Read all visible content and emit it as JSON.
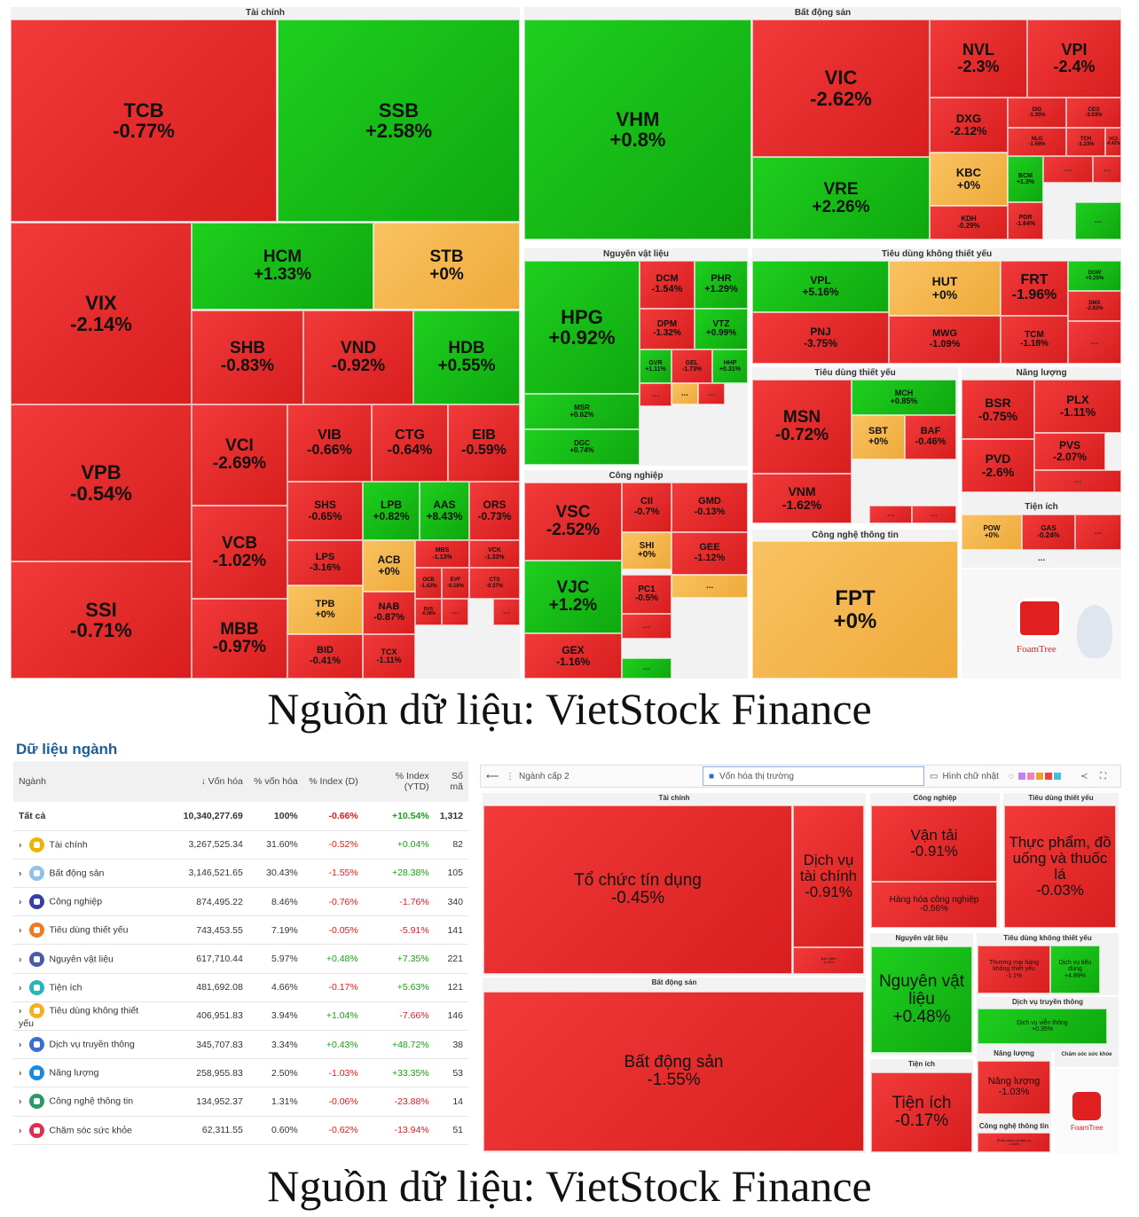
{
  "treemap1": {
    "sections": [
      {
        "name": "sec-tai-chinh",
        "title": "Tài chính"
      },
      {
        "name": "sec-bat-dong-san",
        "title": "Bất động sản"
      },
      {
        "name": "sec-nguyen-vat-lieu",
        "title": "Nguyên vật liệu"
      },
      {
        "name": "sec-tieu-dung-khong-thiet-yeu",
        "title": "Tiêu dùng không thiết yếu"
      },
      {
        "name": "sec-tieu-dung-thiet-yeu",
        "title": "Tiêu dùng thiết yếu"
      },
      {
        "name": "sec-nang-luong",
        "title": "Năng lượng"
      },
      {
        "name": "sec-cong-nghiep",
        "title": "Công nghiệp"
      },
      {
        "name": "sec-tien-ich",
        "title": "Tiện ích"
      },
      {
        "name": "sec-cntt",
        "title": "Công nghệ thông tin"
      }
    ],
    "tiles": [
      {
        "t": "TCB",
        "p": "-0.77%",
        "c": "r"
      },
      {
        "t": "SSB",
        "p": "+2.58%",
        "c": "g"
      },
      {
        "t": "VIX",
        "p": "-2.14%",
        "c": "r"
      },
      {
        "t": "HCM",
        "p": "+1.33%",
        "c": "g"
      },
      {
        "t": "STB",
        "p": "+0%",
        "c": "y"
      },
      {
        "t": "SHB",
        "p": "-0.83%",
        "c": "r"
      },
      {
        "t": "VND",
        "p": "-0.92%",
        "c": "r"
      },
      {
        "t": "HDB",
        "p": "+0.55%",
        "c": "g"
      },
      {
        "t": "VPB",
        "p": "-0.54%",
        "c": "r"
      },
      {
        "t": "VCI",
        "p": "-2.69%",
        "c": "r"
      },
      {
        "t": "VIB",
        "p": "-0.66%",
        "c": "r"
      },
      {
        "t": "CTG",
        "p": "-0.64%",
        "c": "r"
      },
      {
        "t": "EIB",
        "p": "-0.59%",
        "c": "r"
      },
      {
        "t": "SHS",
        "p": "-0.65%",
        "c": "r"
      },
      {
        "t": "LPB",
        "p": "+0.82%",
        "c": "g"
      },
      {
        "t": "AAS",
        "p": "+8.43%",
        "c": "g"
      },
      {
        "t": "ORS",
        "p": "-0.73%",
        "c": "r"
      },
      {
        "t": "VCB",
        "p": "-1.02%",
        "c": "r"
      },
      {
        "t": "LPS",
        "p": "-3.16%",
        "c": "r"
      },
      {
        "t": "ACB",
        "p": "+0%",
        "c": "y"
      },
      {
        "t": "MBS",
        "p": "-1.13%",
        "c": "r"
      },
      {
        "t": "VCK",
        "p": "-1.33%",
        "c": "r"
      },
      {
        "t": "SSI",
        "p": "-0.71%",
        "c": "r"
      },
      {
        "t": "TPB",
        "p": "+0%",
        "c": "y"
      },
      {
        "t": "NAB",
        "p": "-0.87%",
        "c": "r"
      },
      {
        "t": "OCB",
        "p": "-1.42%",
        "c": "r"
      },
      {
        "t": "EVF",
        "p": "-0.16%",
        "c": "r"
      },
      {
        "t": "CTS",
        "p": "-0.37%",
        "c": "r"
      },
      {
        "t": "MBB",
        "p": "-0.97%",
        "c": "r"
      },
      {
        "t": "BID",
        "p": "-0.41%",
        "c": "r"
      },
      {
        "t": "TCX",
        "p": "-1.11%",
        "c": "r"
      },
      {
        "t": "BVS",
        "p": "-0.38%",
        "c": "r"
      },
      {
        "t": "VHM",
        "p": "+0.8%",
        "c": "g"
      },
      {
        "t": "VIC",
        "p": "-2.62%",
        "c": "r"
      },
      {
        "t": "NVL",
        "p": "-2.3%",
        "c": "r"
      },
      {
        "t": "VPI",
        "p": "-2.4%",
        "c": "r"
      },
      {
        "t": "DXG",
        "p": "-2.12%",
        "c": "r"
      },
      {
        "t": "DIG",
        "p": "-1.35%",
        "c": "r"
      },
      {
        "t": "CEO",
        "p": "-3.03%",
        "c": "r"
      },
      {
        "t": "NLG",
        "p": "-1.56%",
        "c": "r"
      },
      {
        "t": "TCH",
        "p": "-1.23%",
        "c": "r"
      },
      {
        "t": "VC3",
        "p": "-0.42%",
        "c": "r"
      },
      {
        "t": "VRE",
        "p": "+2.26%",
        "c": "g"
      },
      {
        "t": "KBC",
        "p": "+0%",
        "c": "y"
      },
      {
        "t": "BCM",
        "p": "+1.3%",
        "c": "g"
      },
      {
        "t": "KDH",
        "p": "-0.29%",
        "c": "r"
      },
      {
        "t": "PDR",
        "p": "-1.64%",
        "c": "r"
      },
      {
        "t": "HPG",
        "p": "+0.92%",
        "c": "g"
      },
      {
        "t": "DCM",
        "p": "-1.54%",
        "c": "r"
      },
      {
        "t": "PHR",
        "p": "+1.29%",
        "c": "g"
      },
      {
        "t": "DPM",
        "p": "-1.32%",
        "c": "r"
      },
      {
        "t": "VTZ",
        "p": "+0.99%",
        "c": "g"
      },
      {
        "t": "GVR",
        "p": "+1.11%",
        "c": "g"
      },
      {
        "t": "GEL",
        "p": "-1.73%",
        "c": "r"
      },
      {
        "t": "HHP",
        "p": "+0.31%",
        "c": "g"
      },
      {
        "t": "MSR",
        "p": "+0.62%",
        "c": "g"
      },
      {
        "t": "DGC",
        "p": "+0.74%",
        "c": "g"
      },
      {
        "t": "VPL",
        "p": "+5.16%",
        "c": "g"
      },
      {
        "t": "HUT",
        "p": "+0%",
        "c": "y"
      },
      {
        "t": "FRT",
        "p": "-1.96%",
        "c": "r"
      },
      {
        "t": "DGW",
        "p": "+0.25%",
        "c": "g"
      },
      {
        "t": "DMX",
        "p": "-2.82%",
        "c": "r"
      },
      {
        "t": "PNJ",
        "p": "-3.75%",
        "c": "r"
      },
      {
        "t": "MWG",
        "p": "-1.09%",
        "c": "r"
      },
      {
        "t": "TCM",
        "p": "-1.18%",
        "c": "r"
      },
      {
        "t": "MSN",
        "p": "-0.72%",
        "c": "r"
      },
      {
        "t": "MCH",
        "p": "+0.85%",
        "c": "g"
      },
      {
        "t": "SBT",
        "p": "+0%",
        "c": "y"
      },
      {
        "t": "BAF",
        "p": "-0.46%",
        "c": "r"
      },
      {
        "t": "VNM",
        "p": "-1.62%",
        "c": "r"
      },
      {
        "t": "BSR",
        "p": "-0.75%",
        "c": "r"
      },
      {
        "t": "PLX",
        "p": "-1.11%",
        "c": "r"
      },
      {
        "t": "PVS",
        "p": "-2.07%",
        "c": "r"
      },
      {
        "t": "PVD",
        "p": "-2.6%",
        "c": "r"
      },
      {
        "t": "VSC",
        "p": "-2.52%",
        "c": "r"
      },
      {
        "t": "CII",
        "p": "-0.7%",
        "c": "r"
      },
      {
        "t": "GMD",
        "p": "-0.13%",
        "c": "r"
      },
      {
        "t": "SHI",
        "p": "+0%",
        "c": "y"
      },
      {
        "t": "GEE",
        "p": "-1.12%",
        "c": "r"
      },
      {
        "t": "VJC",
        "p": "+1.2%",
        "c": "g"
      },
      {
        "t": "PC1",
        "p": "-0.5%",
        "c": "r"
      },
      {
        "t": "GEX",
        "p": "-1.16%",
        "c": "r"
      },
      {
        "t": "POW",
        "p": "+0%",
        "c": "y"
      },
      {
        "t": "GAS",
        "p": "-0.24%",
        "c": "r"
      },
      {
        "t": "FPT",
        "p": "+0%",
        "c": "y"
      }
    ],
    "more": "...",
    "logo": "FoamTree"
  },
  "caption": "Nguồn dữ liệu: VietStock Finance",
  "table": {
    "title": "Dữ liệu ngành",
    "headers": [
      "Ngành",
      "↓ Vốn hóa",
      "% vốn hóa",
      "% Index (D)",
      "% Index (YTD)",
      "Số mã"
    ],
    "rows": [
      {
        "name": "Tất cả",
        "cap": "10,340,277.69",
        "pct": "100%",
        "d": "-0.66%",
        "ytd": "+10.54%",
        "n": "1,312",
        "color": ""
      },
      {
        "name": "Tài chính",
        "cap": "3,267,525.34",
        "pct": "31.60%",
        "d": "-0.52%",
        "ytd": "+0.04%",
        "n": "82",
        "color": "#f0b400"
      },
      {
        "name": "Bất động sản",
        "cap": "3,146,521.65",
        "pct": "30.43%",
        "d": "-1.55%",
        "ytd": "+28.38%",
        "n": "105",
        "color": "#8fc1ea"
      },
      {
        "name": "Công nghiệp",
        "cap": "874,495.22",
        "pct": "8.46%",
        "d": "-0.76%",
        "ytd": "-1.76%",
        "n": "340",
        "color": "#3a3fa8"
      },
      {
        "name": "Tiêu dùng thiết yếu",
        "cap": "743,453.55",
        "pct": "7.19%",
        "d": "-0.05%",
        "ytd": "-5.91%",
        "n": "141",
        "color": "#f07a20"
      },
      {
        "name": "Nguyên vật liệu",
        "cap": "617,710.44",
        "pct": "5.97%",
        "d": "+0.48%",
        "ytd": "+7.35%",
        "n": "221",
        "color": "#4a5ba8"
      },
      {
        "name": "Tiện ích",
        "cap": "481,692.08",
        "pct": "4.66%",
        "d": "-0.17%",
        "ytd": "+5.63%",
        "n": "121",
        "color": "#28b5b5"
      },
      {
        "name": "Tiêu dùng không thiết yếu",
        "cap": "406,951.83",
        "pct": "3.94%",
        "d": "+1.04%",
        "ytd": "-7.66%",
        "n": "146",
        "color": "#f4b020"
      },
      {
        "name": "Dịch vụ truyền thông",
        "cap": "345,707.83",
        "pct": "3.34%",
        "d": "+0.43%",
        "ytd": "+48.72%",
        "n": "38",
        "color": "#3a6ed0"
      },
      {
        "name": "Năng lượng",
        "cap": "258,955.83",
        "pct": "2.50%",
        "d": "-1.03%",
        "ytd": "+33.35%",
        "n": "53",
        "color": "#1a8ae0"
      },
      {
        "name": "Công nghệ thông tin",
        "cap": "134,952.37",
        "pct": "1.31%",
        "d": "-0.06%",
        "ytd": "-23.88%",
        "n": "14",
        "color": "#2a9a6a"
      },
      {
        "name": "Chăm sóc sức khỏe",
        "cap": "62,311.55",
        "pct": "0.60%",
        "d": "-0.62%",
        "ytd": "-13.94%",
        "n": "51",
        "color": "#e03050"
      }
    ]
  },
  "toolbar": {
    "level": "Ngành cấp 2",
    "metric": "Vốn hóa thị trường",
    "shape": "Hình chữ nhật"
  },
  "treemap2": {
    "tiles": [
      {
        "name": "tile2-to-chuc-tin-dung",
        "label": "Tổ chức tín dụng",
        "p": "-0.45%"
      },
      {
        "name": "tile2-dich-vu-tai-chinh",
        "label": "Dịch vụ tài chính",
        "p": "-0.91%"
      },
      {
        "name": "tile2-van-tai",
        "label": "Vận tải",
        "p": "-0.91%"
      },
      {
        "name": "tile2-hang-hoa-cong-nghiep",
        "label": "Hàng hóa công nghiệp",
        "p": "-0.56%"
      },
      {
        "name": "tile2-thuc-pham",
        "label": "Thực phẩm, đồ uống và thuốc lá",
        "p": "-0.03%"
      },
      {
        "name": "tile2-nguyen-vat-lieu",
        "label": "Nguyên vật liệu",
        "p": "+0.48%"
      },
      {
        "name": "tile2-thuong-mai-hang",
        "label": "Thương mại hàng không thiết yếu",
        "p": "-1.1%"
      },
      {
        "name": "tile2-dich-vu-tieu-dung",
        "label": "Dịch vụ tiêu dùng",
        "p": "+4.89%"
      },
      {
        "name": "tile2-dich-vu-vien-thong",
        "label": "Dịch vụ viễn thông",
        "p": "+0.35%"
      },
      {
        "name": "tile2-bat-dong-san",
        "label": "Bất động sản",
        "p": "-1.55%"
      },
      {
        "name": "tile2-tien-ich",
        "label": "Tiện ích",
        "p": "-0.17%"
      },
      {
        "name": "tile2-nang-luong",
        "label": "Năng lượng",
        "p": "-1.03%"
      },
      {
        "name": "tile2-bao-hiem",
        "label": "Bảo hiểm",
        "p": "-0.22%"
      },
      {
        "name": "tile2-phan-mem",
        "label": "Phần mềm và dịch vụ",
        "p": "-0.06%"
      }
    ],
    "sections": [
      "Tài chính",
      "Công nghiệp",
      "Tiêu dùng thiết yếu",
      "Nguyên vật liệu",
      "Tiêu dùng không thiết yếu",
      "Dịch vụ truyền thông",
      "Bất động sản",
      "Tiện ích",
      "Năng lượng",
      "Chăm sóc sức khỏe",
      "Công nghệ thông tin"
    ]
  }
}
